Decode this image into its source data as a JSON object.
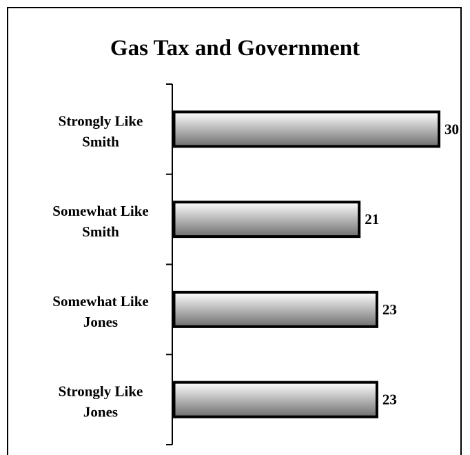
{
  "chart_data": {
    "type": "bar",
    "orientation": "horizontal",
    "title": "Gas Tax and Government",
    "categories": [
      [
        "Strongly Like",
        "Smith"
      ],
      [
        "Somewhat Like",
        "Smith"
      ],
      [
        "Somewhat Like",
        "Jones"
      ],
      [
        "Strongly Like",
        "Jones"
      ]
    ],
    "values": [
      30,
      21,
      23,
      23
    ],
    "xlim": [
      0,
      30
    ],
    "grid": false,
    "legend": "none",
    "colors": {
      "bar_light": "#ffffff",
      "bar_dark": "#6e6e6e",
      "outline": "#000000"
    }
  }
}
